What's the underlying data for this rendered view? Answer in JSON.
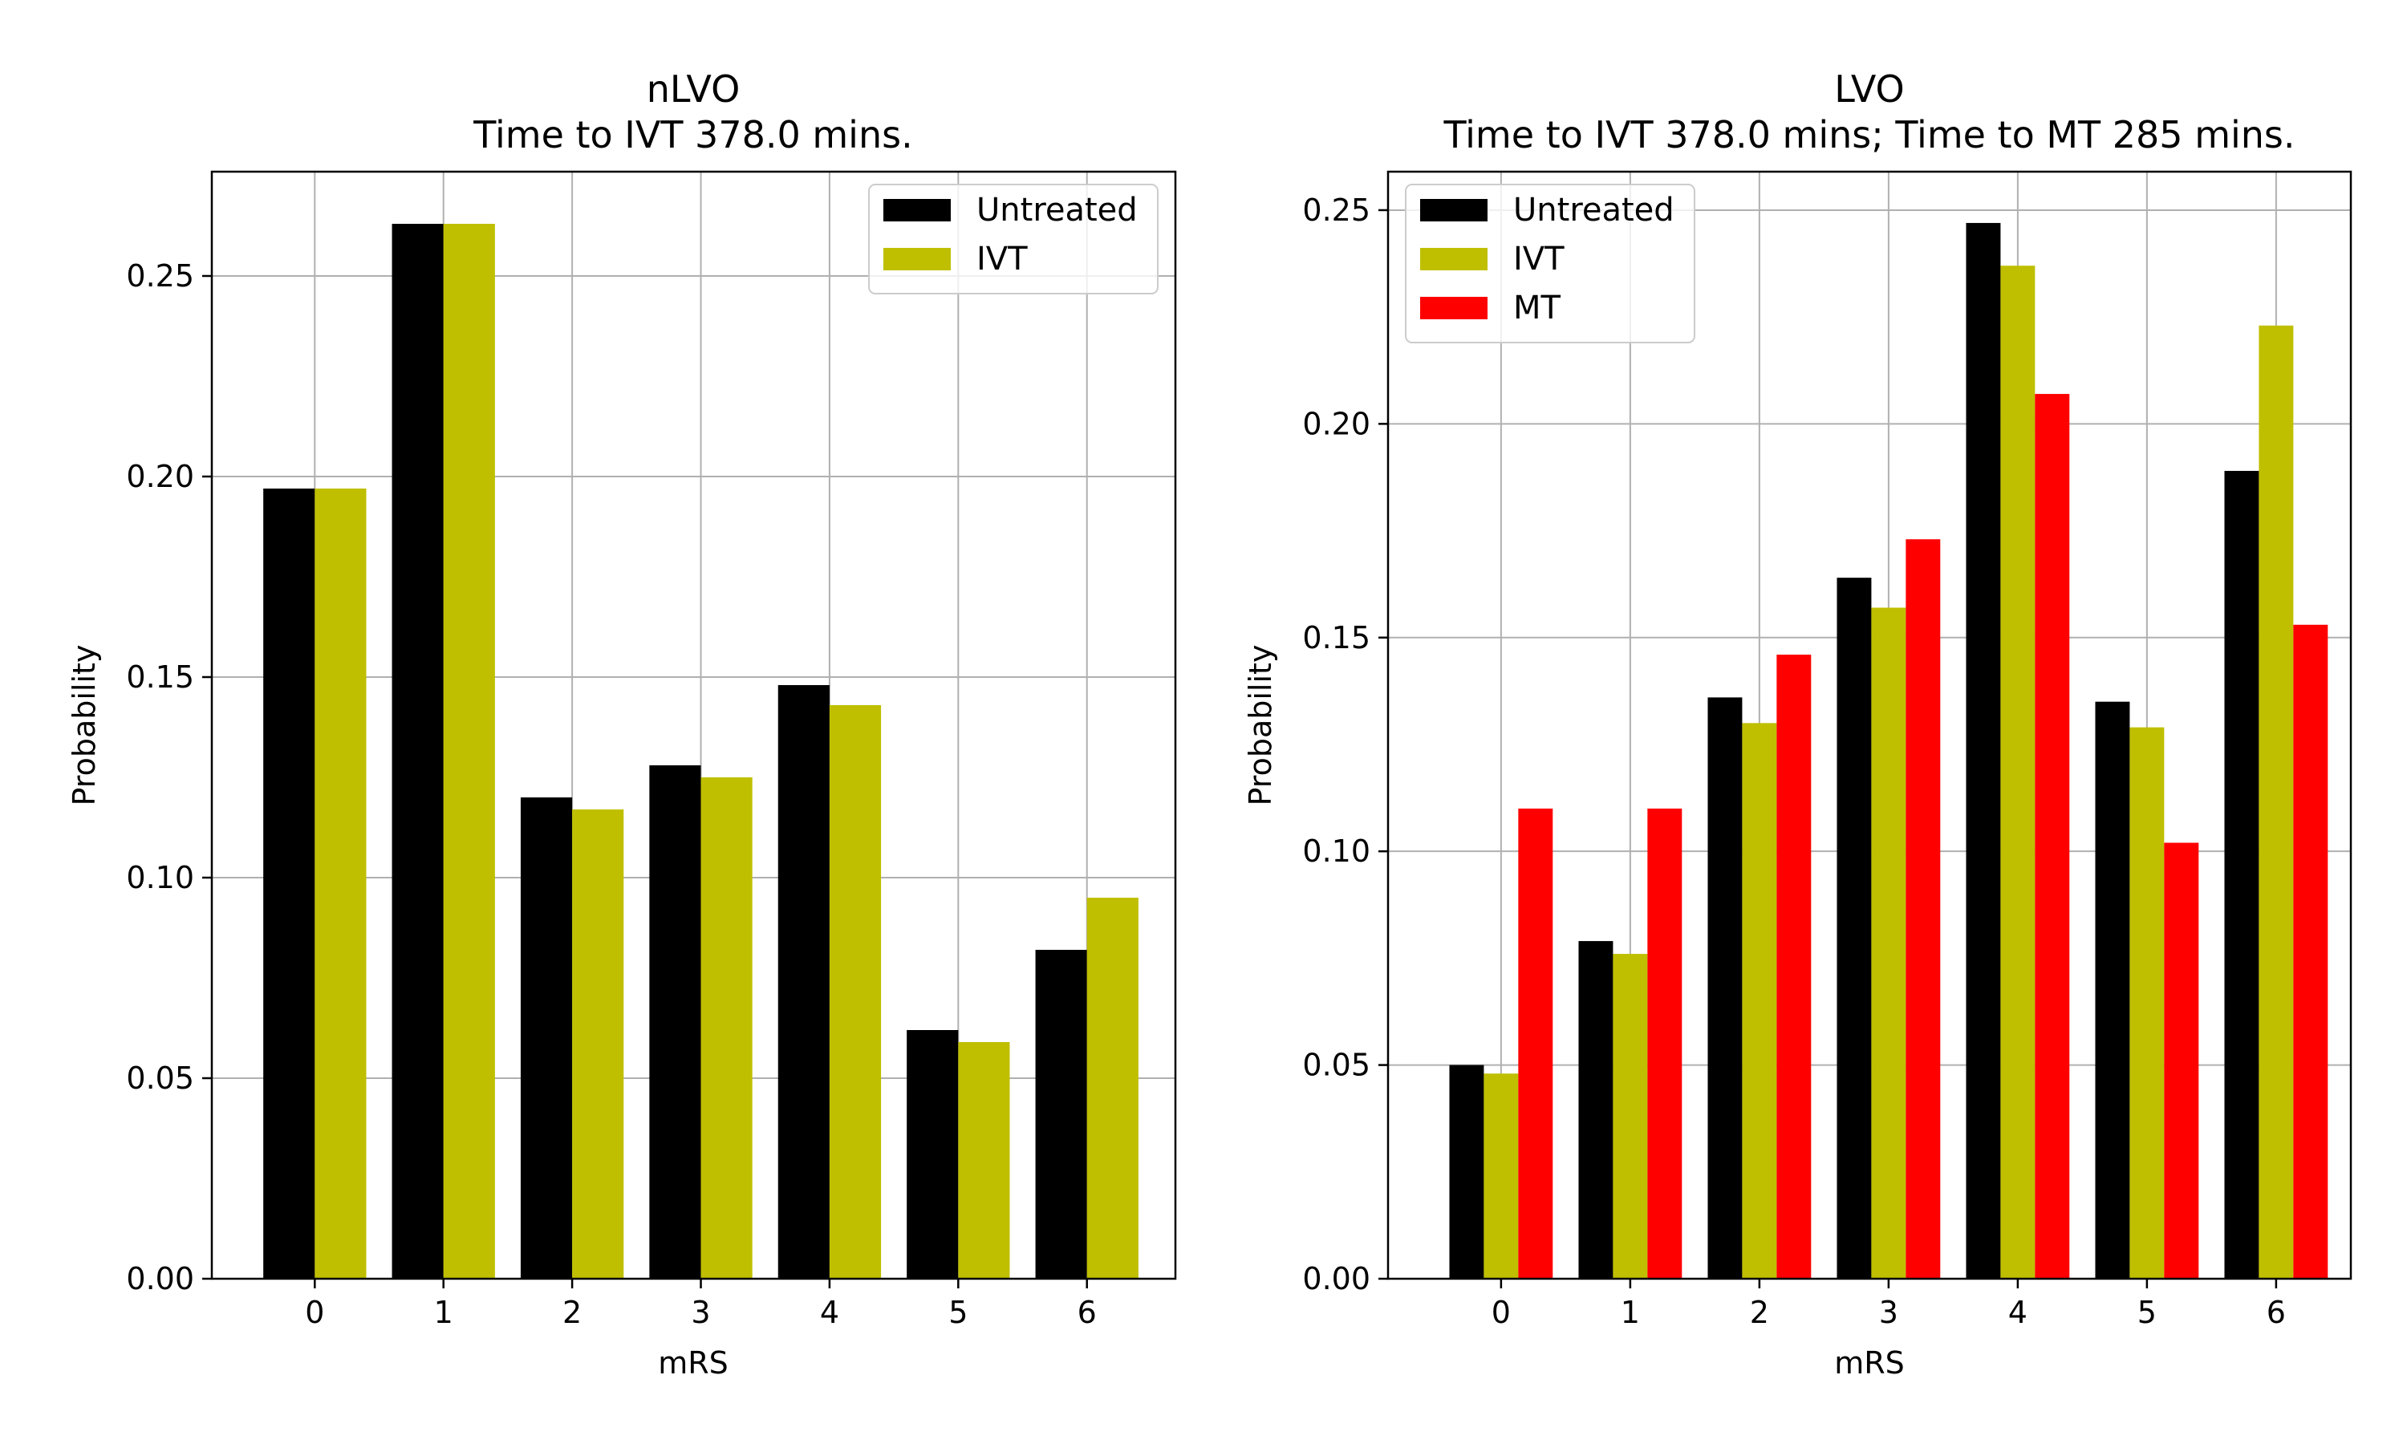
{
  "chart_data": [
    {
      "type": "bar",
      "title_line1": "nLVO",
      "title_line2": "Time to IVT 378.0 mins.",
      "xlabel": "mRS",
      "ylabel": "Probability",
      "categories": [
        "0",
        "1",
        "2",
        "3",
        "4",
        "5",
        "6"
      ],
      "ylim": [
        0,
        0.276
      ],
      "yticks": [
        "0.00",
        "0.05",
        "0.10",
        "0.15",
        "0.20",
        "0.25"
      ],
      "grid": true,
      "legend_position": "top-right",
      "series": [
        {
          "name": "Untreated",
          "color": "#000000",
          "values": [
            0.197,
            0.263,
            0.12,
            0.128,
            0.148,
            0.062,
            0.082
          ]
        },
        {
          "name": "IVT",
          "color": "#bfbf00",
          "values": [
            0.197,
            0.263,
            0.117,
            0.125,
            0.143,
            0.059,
            0.095
          ]
        }
      ]
    },
    {
      "type": "bar",
      "title_line1": "LVO",
      "title_line2": "Time to IVT 378.0 mins; Time to MT 285 mins.",
      "xlabel": "mRS",
      "ylabel": "Probability",
      "categories": [
        "0",
        "1",
        "2",
        "3",
        "4",
        "5",
        "6"
      ],
      "ylim": [
        0,
        0.259
      ],
      "yticks": [
        "0.00",
        "0.05",
        "0.10",
        "0.15",
        "0.20",
        "0.25"
      ],
      "grid": true,
      "legend_position": "top-left",
      "series": [
        {
          "name": "Untreated",
          "color": "#000000",
          "values": [
            0.05,
            0.079,
            0.136,
            0.164,
            0.247,
            0.135,
            0.189
          ]
        },
        {
          "name": "IVT",
          "color": "#bfbf00",
          "values": [
            0.048,
            0.076,
            0.13,
            0.157,
            0.237,
            0.129,
            0.223
          ]
        },
        {
          "name": "MT",
          "color": "#ff0000",
          "values": [
            0.11,
            0.11,
            0.146,
            0.173,
            0.207,
            0.102,
            0.153
          ]
        }
      ]
    }
  ]
}
